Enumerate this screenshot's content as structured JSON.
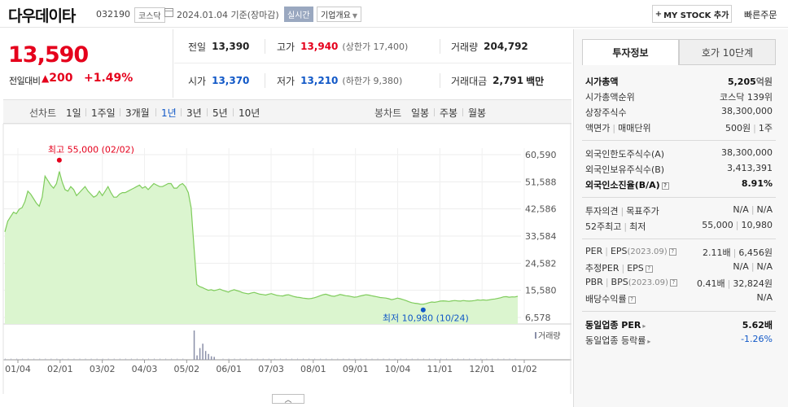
{
  "header": {
    "name": "다우데이타",
    "code": "032190",
    "market": "코스닥",
    "date": "2024.01.04",
    "basis": "기준(장마감)",
    "realtime": "실시간",
    "corp_info": "기업개요",
    "mystock": "MY STOCK 추가",
    "quick_order": "빠른주문"
  },
  "price": {
    "current": "13,590",
    "change_label": "전일대비",
    "change_symbol": "▲",
    "change": "200",
    "change_pct": "+1.49%"
  },
  "stats": {
    "prev_label": "전일",
    "prev": "13,390",
    "high_label": "고가",
    "high": "13,940",
    "upper_limit": "(상한가 17,400)",
    "volume_label": "거래량",
    "volume": "204,792",
    "open_label": "시가",
    "open": "13,370",
    "low_label": "저가",
    "low": "13,210",
    "lower_limit": "(하한가 9,380)",
    "value_label": "거래대금",
    "value": "2,791",
    "value_unit": "백만"
  },
  "tabs": {
    "line_chart": "선차트",
    "periods": [
      "1일",
      "1주일",
      "3개월",
      "1년",
      "3년",
      "5년",
      "10년"
    ],
    "active_period": "1년",
    "candle_chart": "봉차트",
    "candles": [
      "일봉",
      "주봉",
      "월봉"
    ]
  },
  "chart_data": {
    "type": "area",
    "x_labels": [
      "01/04",
      "02/01",
      "03/02",
      "04/03",
      "05/02",
      "06/01",
      "07/03",
      "08/01",
      "09/01",
      "10/04",
      "11/01",
      "12/01",
      "01/02"
    ],
    "y_ticks": [
      "60,590",
      "51,588",
      "42,586",
      "33,584",
      "24,582",
      "15,580",
      "6,578"
    ],
    "ylim": [
      6578,
      60590
    ],
    "series": [
      {
        "values": [
          35000,
          38500,
          40000,
          41500,
          41000,
          42500,
          43000,
          45000,
          48500,
          47500,
          46000,
          44500,
          43500,
          46500,
          53500,
          52000,
          50500,
          49500,
          51000,
          55000,
          51500,
          49000,
          48500,
          50000,
          49000,
          47000,
          48000,
          49000,
          50000,
          48500,
          47500,
          46500,
          47000,
          48500,
          47000,
          48500,
          50000,
          48000,
          46500,
          46500,
          47500,
          48000,
          48000,
          48500,
          49000,
          49500,
          50000,
          50500,
          49500,
          50000,
          49000,
          50000,
          51000,
          50500,
          50000,
          50000,
          50500,
          51000,
          51000,
          49500,
          49500,
          50500,
          51000,
          50000,
          48000,
          43000,
          30000,
          17500,
          16800,
          16500,
          16000,
          15600,
          15800,
          15500,
          15700,
          16000,
          15600,
          15300,
          15000,
          15500,
          15800,
          15500,
          15200,
          14800,
          14600,
          14400,
          14700,
          14900,
          14600,
          14300,
          14200,
          14000,
          14300,
          14500,
          14200,
          13900,
          13800,
          13700,
          14000,
          14100,
          13800,
          13500,
          13300,
          13200,
          13000,
          12900,
          12800,
          12900,
          13100,
          13400,
          13800,
          14100,
          14300,
          14000,
          13700,
          13600,
          13900,
          14200,
          14000,
          13800,
          13700,
          13500,
          13300,
          13400,
          13700,
          13900,
          14100,
          14000,
          13800,
          13600,
          13400,
          13200,
          13100,
          13000,
          12800,
          12500,
          12700,
          13000,
          12800,
          12500,
          12200,
          11800,
          11500,
          11300,
          11200,
          11000,
          10980,
          11200,
          11500,
          11700,
          11600,
          11800,
          12000,
          12100,
          12000,
          11900,
          12100,
          12200,
          12100,
          12000,
          12200,
          12100,
          12000,
          12100,
          12200,
          12400,
          12300,
          12400,
          12300,
          12400,
          12600,
          12700,
          12900,
          13100,
          13400,
          13500,
          13300,
          13400,
          13390,
          13590
        ]
      }
    ],
    "high_annotation": "최고 55,000 (02/02)",
    "low_annotation": "최저 10,980 (10/24)",
    "high_value": 55000,
    "low_value": 10980,
    "volume_label": "거래량",
    "volume_bars": [
      {
        "index": 66,
        "value": 1.0
      },
      {
        "index": 68,
        "value": 0.4
      },
      {
        "index": 69,
        "value": 0.55
      },
      {
        "index": 70,
        "value": 0.3
      },
      {
        "index": 71,
        "value": 0.2
      },
      {
        "index": 72,
        "value": 0.12
      },
      {
        "index": 73,
        "value": 0.1
      },
      {
        "index": 67,
        "value": 0.15
      }
    ]
  },
  "panel": {
    "tab_info": "투자정보",
    "tab_hoga": "호가 10단계",
    "rows1": [
      {
        "k": "시가총액",
        "v": "5,205",
        "vu": "억원",
        "bold": true
      },
      {
        "k": "시가총액순위",
        "v": "코스닥 139위"
      },
      {
        "k": "상장주식수",
        "v": "38,300,000"
      },
      {
        "k": "액면가",
        "k2": "매매단위",
        "v": "500원",
        "v2": "1주"
      }
    ],
    "rows2": [
      {
        "k": "외국인한도주식수(A)",
        "v": "38,300,000"
      },
      {
        "k": "외국인보유주식수(B)",
        "v": "3,413,391"
      },
      {
        "k": "외국인소진율(B/A)",
        "v": "8.91%",
        "bold": true,
        "help": true
      }
    ],
    "rows3": [
      {
        "k": "투자의견",
        "k2": "목표주가",
        "v": "N/A",
        "v2": "N/A"
      },
      {
        "k": "52주최고",
        "k2": "최저",
        "v": "55,000",
        "v2": "10,980"
      }
    ],
    "rows4": [
      {
        "k": "PER",
        "k2": "EPS",
        "kp": "(2023.09)",
        "v": "2.11배",
        "v2": "6,456원",
        "help": true
      },
      {
        "k": "추정PER",
        "k2": "EPS",
        "v": "N/A",
        "v2": "N/A",
        "help": true
      },
      {
        "k": "PBR",
        "k2": "BPS",
        "kp": "(2023.09)",
        "v": "0.41배",
        "v2": "32,824원",
        "help": true
      },
      {
        "k": "배당수익률",
        "v": "N/A",
        "help": true
      }
    ],
    "rows5": [
      {
        "k": "동일업종 PER",
        "v": "5.62배",
        "bold": true,
        "arrow": true
      },
      {
        "k": "동일업종 등락률",
        "v": "-1.26%",
        "arrow": true,
        "blue": true
      }
    ]
  }
}
